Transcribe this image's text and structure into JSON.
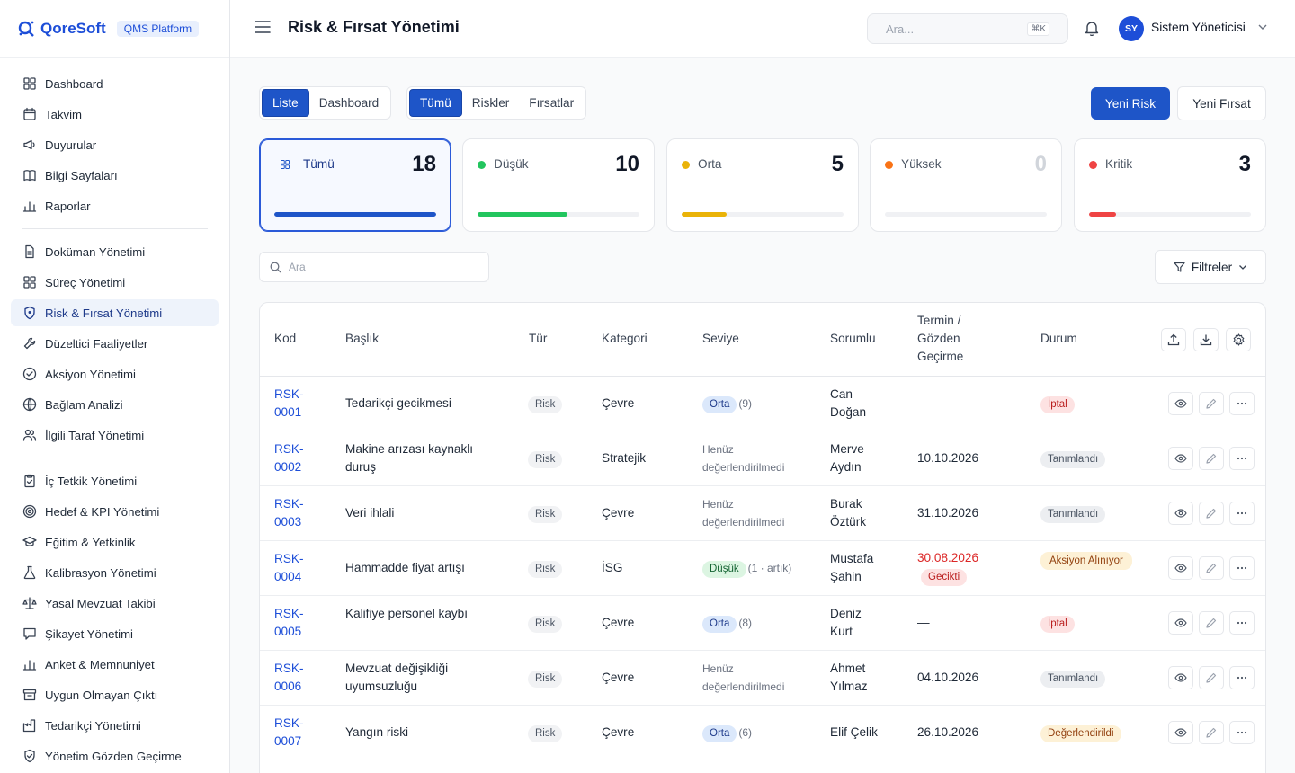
{
  "brand": {
    "name": "QoreSoft",
    "badge": "QMS Platform"
  },
  "sidebar": {
    "groups": [
      [
        {
          "label": "Dashboard",
          "icon": "grid-icon"
        },
        {
          "label": "Takvim",
          "icon": "calendar-icon"
        },
        {
          "label": "Duyurular",
          "icon": "megaphone-icon"
        },
        {
          "label": "Bilgi Sayfaları",
          "icon": "book-icon"
        },
        {
          "label": "Raporlar",
          "icon": "bar-chart-icon"
        }
      ],
      [
        {
          "label": "Doküman Yönetimi",
          "icon": "document-icon"
        },
        {
          "label": "Süreç Yönetimi",
          "icon": "grid-icon"
        },
        {
          "label": "Risk & Fırsat Yönetimi",
          "icon": "shield-icon",
          "active": true
        },
        {
          "label": "Düzeltici Faaliyetler",
          "icon": "wrench-icon"
        },
        {
          "label": "Aksiyon Yönetimi",
          "icon": "check-circle-icon"
        },
        {
          "label": "Bağlam Analizi",
          "icon": "globe-icon"
        },
        {
          "label": "İlgili Taraf Yönetimi",
          "icon": "users-icon"
        }
      ],
      [
        {
          "label": "İç Tetkik Yönetimi",
          "icon": "clipboard-icon"
        },
        {
          "label": "Hedef & KPI Yönetimi",
          "icon": "target-icon"
        },
        {
          "label": "Eğitim & Yetkinlik",
          "icon": "graduation-cap-icon"
        },
        {
          "label": "Kalibrasyon Yönetimi",
          "icon": "flask-icon"
        },
        {
          "label": "Yasal Mevzuat Takibi",
          "icon": "scale-icon"
        },
        {
          "label": "Şikayet Yönetimi",
          "icon": "message-icon"
        },
        {
          "label": "Anket & Memnuniyet",
          "icon": "bar-chart-icon"
        },
        {
          "label": "Uygun Olmayan Çıktı",
          "icon": "archive-icon"
        },
        {
          "label": "Tedarikçi Yönetimi",
          "icon": "factory-icon"
        },
        {
          "label": "Yönetim Gözden Geçirme",
          "icon": "shield-check-icon"
        }
      ]
    ]
  },
  "header": {
    "title": "Risk & Fırsat Yönetimi",
    "search_placeholder": "Ara...",
    "search_shortcut": "⌘K",
    "user_initials": "SY",
    "user_name": "Sistem Yöneticisi"
  },
  "view_toggle": {
    "items": [
      "Liste",
      "Dashboard"
    ],
    "selected": "Liste"
  },
  "type_toggle": {
    "items": [
      "Tümü",
      "Riskler",
      "Fırsatlar"
    ],
    "selected": "Tümü"
  },
  "actions": {
    "new_risk": "Yeni Risk",
    "new_opportunity": "Yeni Fırsat"
  },
  "stat_cards": [
    {
      "label": "Tümü",
      "count": "18",
      "fraction": 1.0,
      "color": "#1e55c8",
      "selected": true
    },
    {
      "label": "Düşük",
      "count": "10",
      "fraction": 0.556,
      "color": "#22c55e"
    },
    {
      "label": "Orta",
      "count": "5",
      "fraction": 0.278,
      "color": "#eab308"
    },
    {
      "label": "Yüksek",
      "count": "0",
      "fraction": 0,
      "color": "#f97316"
    },
    {
      "label": "Kritik",
      "count": "3",
      "fraction": 0.167,
      "color": "#ef4444"
    }
  ],
  "list_search_placeholder": "Ara",
  "filters_label": "Filtreler",
  "table": {
    "columns": [
      "Kod",
      "Başlık",
      "Tür",
      "Kategori",
      "Seviye",
      "Sorumlu",
      "Termin / Gözden Geçirme",
      "Durum"
    ],
    "rows": [
      {
        "code_a": "RSK-",
        "code_b": "0001",
        "title": "Tedarikçi gecikmesi",
        "type": "Risk",
        "category": "Çevre",
        "level": "Orta",
        "level_kind": "orta",
        "level_note": "(9)",
        "owner_a": "Can",
        "owner_b": "Doğan",
        "due": "—",
        "late": false,
        "status": "İptal",
        "status_kind": "iptal"
      },
      {
        "code_a": "RSK-",
        "code_b": "0002",
        "title": "Makine arızası kaynaklı duruş",
        "type": "Risk",
        "category": "Stratejik",
        "level": "Henüz değerlendirilmedi",
        "level_kind": "pending",
        "level_note": "",
        "owner_a": "Merve",
        "owner_b": "Aydın",
        "due": "10.10.2026",
        "late": false,
        "status": "Tanımlandı",
        "status_kind": "tanim"
      },
      {
        "code_a": "RSK-",
        "code_b": "0003",
        "title": "Veri ihlali",
        "type": "Risk",
        "category": "Çevre",
        "level": "Henüz değerlendirilmedi",
        "level_kind": "pending",
        "level_note": "",
        "owner_a": "Burak",
        "owner_b": "Öztürk",
        "due": "31.10.2026",
        "late": false,
        "status": "Tanımlandı",
        "status_kind": "tanim"
      },
      {
        "code_a": "RSK-",
        "code_b": "0004",
        "title": "Hammadde fiyat artışı",
        "type": "Risk",
        "category": "İSG",
        "level": "Düşük",
        "level_kind": "dusuk",
        "level_note": "(1 · artık)",
        "owner_a": "Mustafa",
        "owner_b": "Şahin",
        "due": "30.08.2026",
        "late": true,
        "late_label": "Gecikti",
        "status": "Aksiyon Alınıyor",
        "status_kind": "aksiyon"
      },
      {
        "code_a": "RSK-",
        "code_b": "0005",
        "title": "Kalifiye personel kaybı",
        "type": "Risk",
        "category": "Çevre",
        "level": "Orta",
        "level_kind": "orta",
        "level_note": "(8)",
        "owner_a": "Deniz",
        "owner_b": "Kurt",
        "due": "—",
        "late": false,
        "status": "İptal",
        "status_kind": "iptal"
      },
      {
        "code_a": "RSK-",
        "code_b": "0006",
        "title": "Mevzuat değişikliği uyumsuzluğu",
        "type": "Risk",
        "category": "Çevre",
        "level": "Henüz değerlendirilmedi",
        "level_kind": "pending",
        "level_note": "",
        "owner_a": "Ahmet",
        "owner_b": "Yılmaz",
        "due": "04.10.2026",
        "late": false,
        "status": "Tanımlandı",
        "status_kind": "tanim"
      },
      {
        "code_a": "RSK-",
        "code_b": "0007",
        "title": "Yangın riski",
        "type": "Risk",
        "category": "Çevre",
        "level": "Orta",
        "level_kind": "orta",
        "level_note": "(6)",
        "owner_a": "Elif Çelik",
        "owner_b": "",
        "due": "26.10.2026",
        "late": false,
        "status": "Değerlendirildi",
        "status_kind": "deger"
      }
    ]
  }
}
